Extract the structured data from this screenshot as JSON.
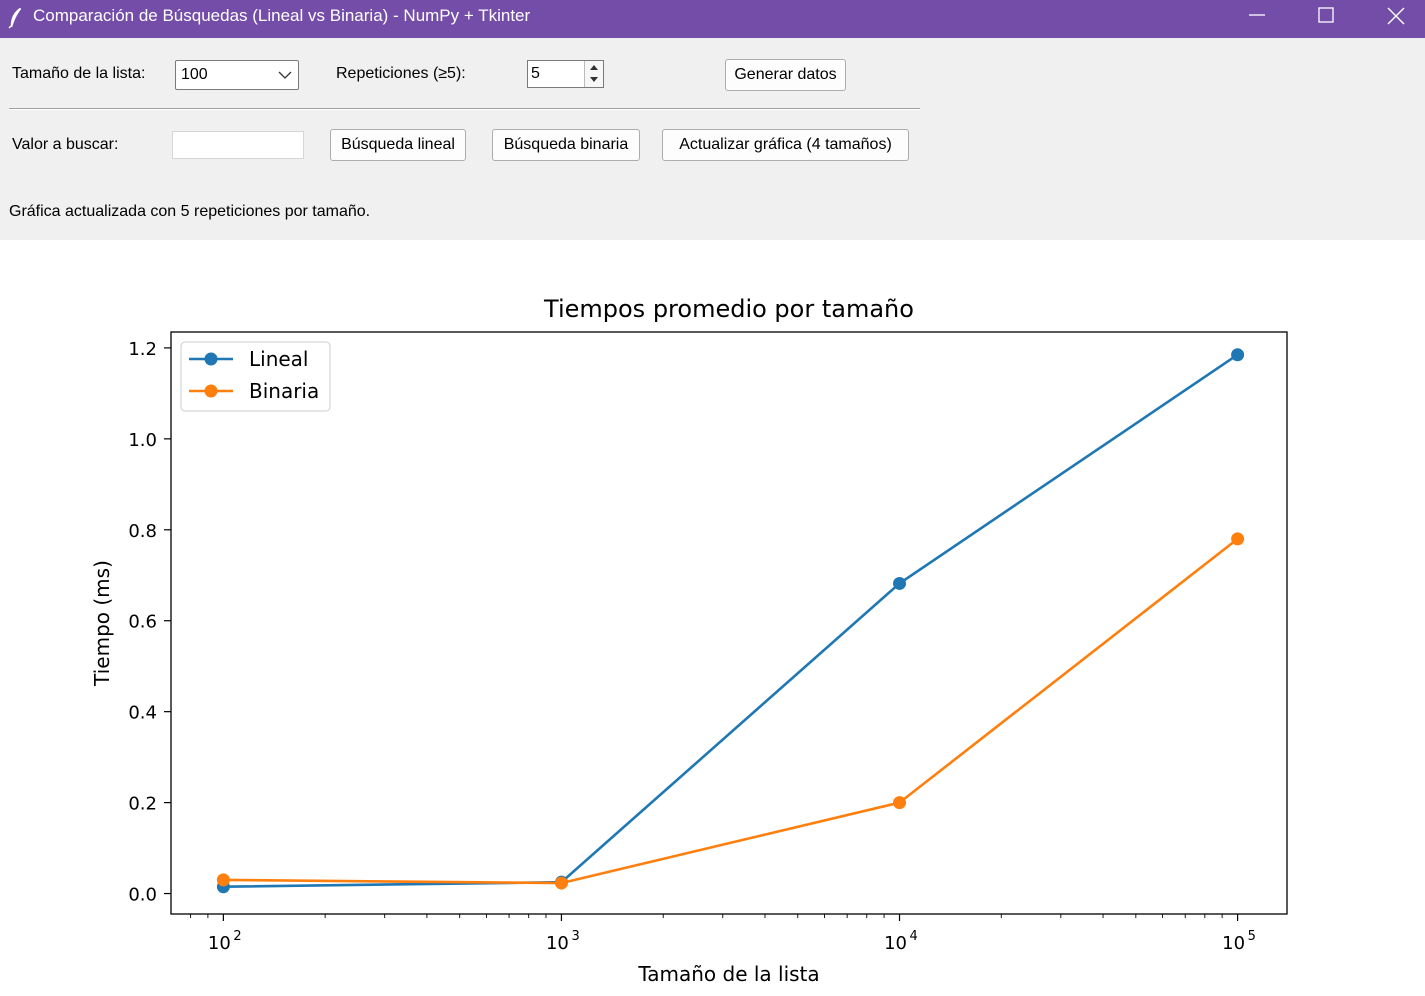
{
  "window": {
    "title": "Comparación de Búsquedas (Lineal vs Binaria) - NumPy + Tkinter",
    "app_icon": "feather-icon",
    "controls": [
      "minimize-icon",
      "maximize-icon",
      "close-icon"
    ]
  },
  "colors": {
    "titlebar": "#744da9",
    "panel": "#f0f0f0",
    "lineal": "#1f77b4",
    "binaria": "#ff7f0e"
  },
  "controls": {
    "size_label": "Tamaño de la lista:",
    "size_value": "100",
    "reps_label": "Repeticiones (≥5):",
    "reps_value": "5",
    "generate_button": "Generar datos",
    "search_label": "Valor a buscar:",
    "search_value": "",
    "linear_button": "Búsqueda lineal",
    "binary_button": "Búsqueda binaria",
    "update_button": "Actualizar gráfica (4 tamaños)",
    "status": "Gráfica actualizada con 5 repeticiones por tamaño."
  },
  "chart_data": {
    "type": "line",
    "title": "Tiempos promedio por tamaño",
    "xlabel": "Tamaño de la lista",
    "ylabel": "Tiempo (ms)",
    "xscale": "log",
    "x": [
      100,
      1000,
      10000,
      100000
    ],
    "xticks": [
      {
        "base": "10",
        "exp": "2"
      },
      {
        "base": "10",
        "exp": "3"
      },
      {
        "base": "10",
        "exp": "4"
      },
      {
        "base": "10",
        "exp": "5"
      }
    ],
    "xlim": [
      70,
      140000
    ],
    "ylim": [
      -0.045,
      1.235
    ],
    "yticks": [
      "0.0",
      "0.2",
      "0.4",
      "0.6",
      "0.8",
      "1.0",
      "1.2"
    ],
    "legend_position": "top-left",
    "grid": false,
    "series": [
      {
        "name": "Lineal",
        "color": "#1f77b4",
        "values": [
          0.015,
          0.025,
          0.682,
          1.185
        ]
      },
      {
        "name": "Binaria",
        "color": "#ff7f0e",
        "values": [
          0.03,
          0.023,
          0.2,
          0.78
        ]
      }
    ]
  }
}
